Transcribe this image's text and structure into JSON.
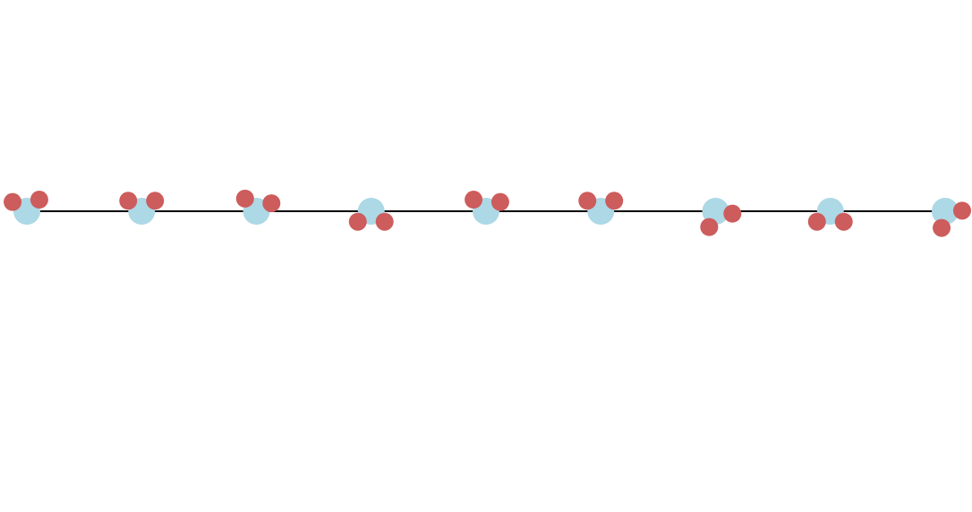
{
  "diagram": {
    "type": "molecule-chain",
    "molecule_count": 9,
    "colors": {
      "background": "#ffffff",
      "chain_line": "#000000",
      "central_atom": "#add8e6",
      "side_atom": "#cd5c5c"
    },
    "molecules": [
      {
        "orientation_deg": -95
      },
      {
        "orientation_deg": -90
      },
      {
        "orientation_deg": -80
      },
      {
        "orientation_deg": 90
      },
      {
        "orientation_deg": -85
      },
      {
        "orientation_deg": -90
      },
      {
        "orientation_deg": 60
      },
      {
        "orientation_deg": 90
      },
      {
        "orientation_deg": 50
      }
    ]
  }
}
